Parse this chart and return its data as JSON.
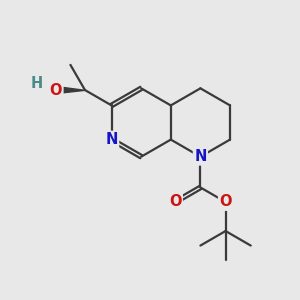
{
  "bg_color": "#e8e8e8",
  "bond_color": "#3a3a3a",
  "bond_width": 1.6,
  "atom_colors": {
    "N": "#1414c8",
    "O": "#cc1414",
    "H": "#4a8a8a",
    "C": "#3a3a3a"
  },
  "font_size": 10.5,
  "xlim": [
    0,
    10
  ],
  "ylim": [
    0,
    10
  ],
  "bl": 1.0
}
